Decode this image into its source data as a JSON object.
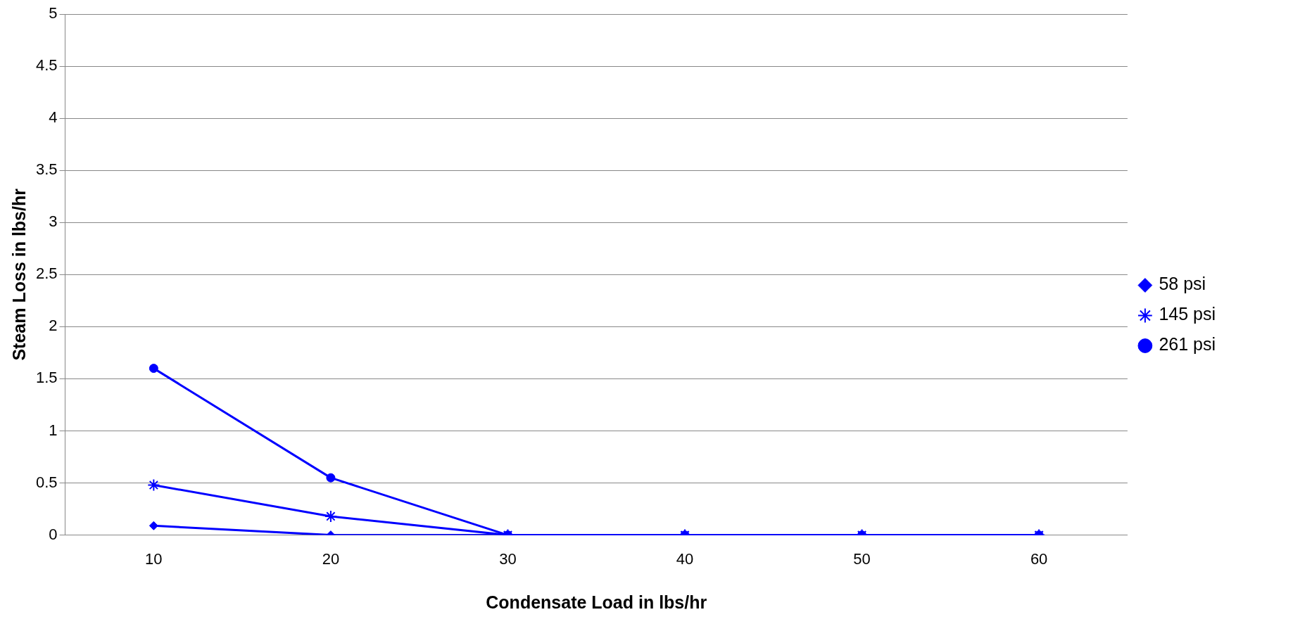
{
  "chart_data": {
    "type": "line",
    "xlabel": "Condensate Load in lbs/hr",
    "ylabel": "Steam Loss in lbs/hr",
    "categories": [
      "10",
      "20",
      "30",
      "40",
      "50",
      "60"
    ],
    "series": [
      {
        "name": "58 psi",
        "color": "#0000ff",
        "marker": "diamond",
        "values": [
          0.09,
          0,
          0,
          0,
          0,
          0
        ]
      },
      {
        "name": "145 psi",
        "color": "#0000ff",
        "marker": "cross",
        "values": [
          0.48,
          0.18,
          0,
          0,
          0,
          0
        ]
      },
      {
        "name": "261 psi",
        "color": "#0000ff",
        "marker": "circle",
        "values": [
          1.6,
          0.55,
          0,
          0,
          0,
          0
        ]
      }
    ],
    "ylim": [
      0,
      5
    ],
    "yticks": [
      0,
      0.5,
      1,
      1.5,
      2,
      2.5,
      3,
      3.5,
      4,
      4.5,
      5
    ],
    "grid": "y",
    "legend": "right",
    "line_style": "solid"
  }
}
